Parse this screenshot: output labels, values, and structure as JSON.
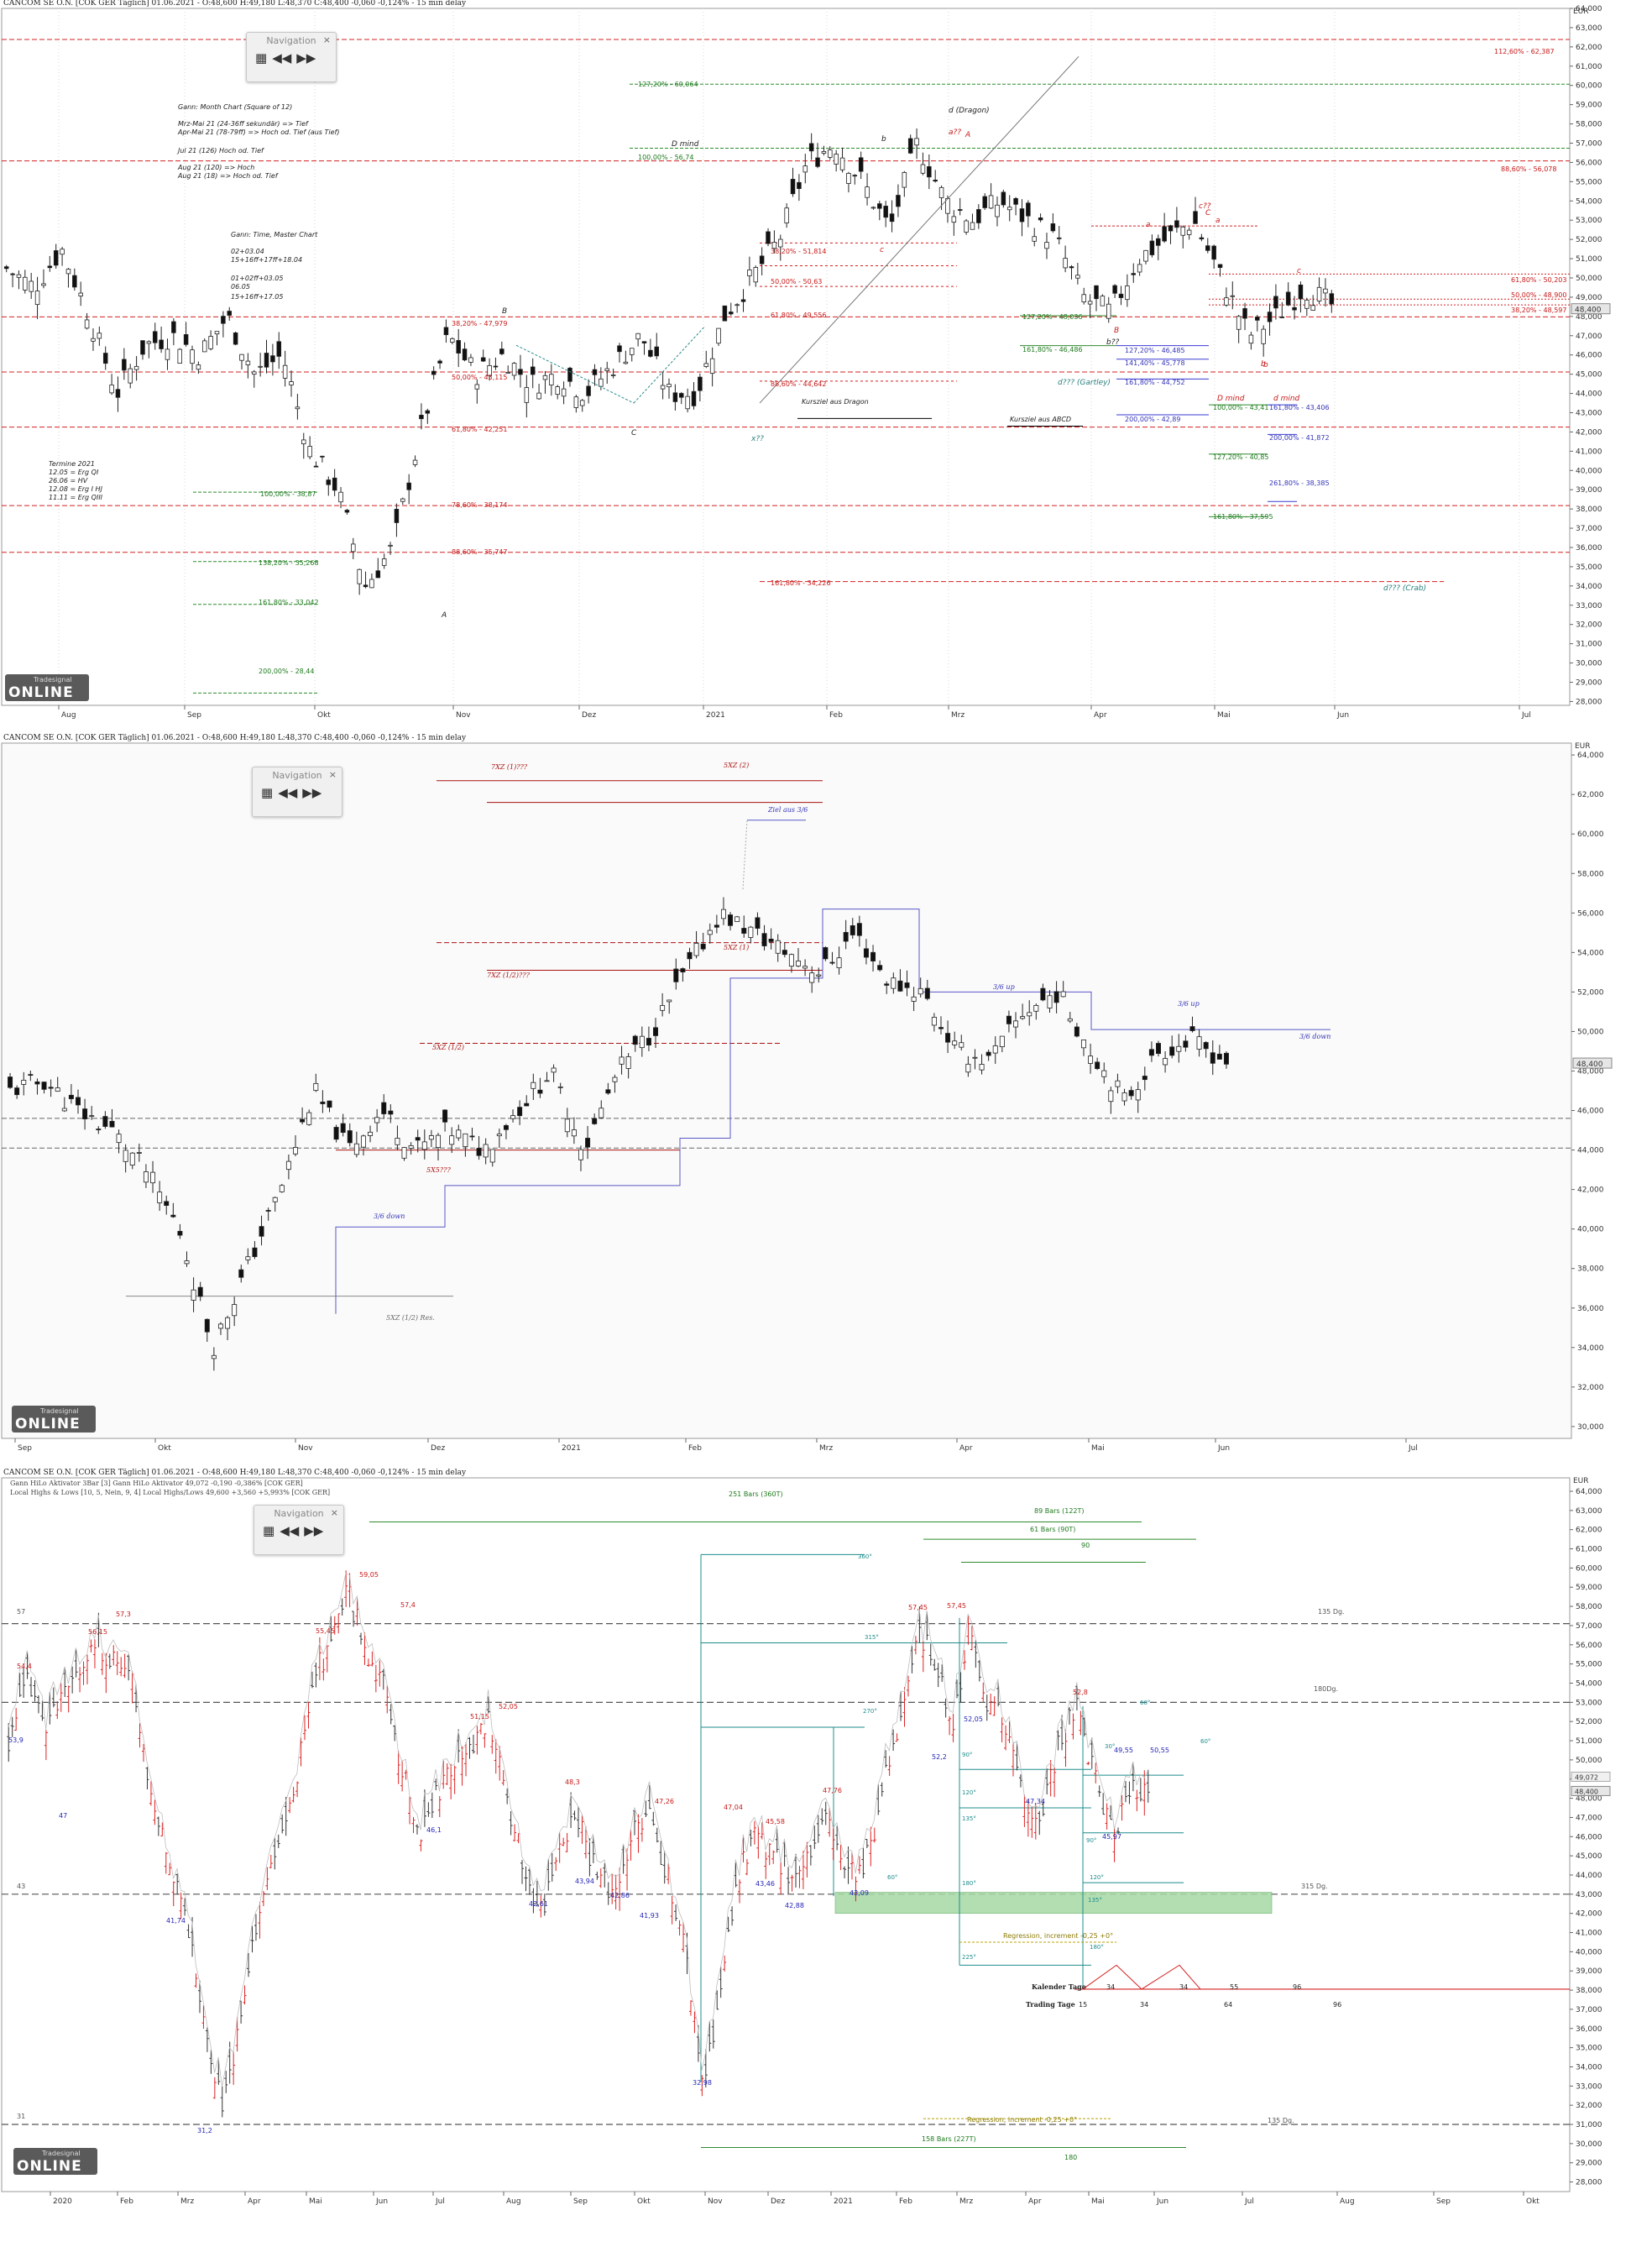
{
  "panels": [
    {
      "id": "p1",
      "header": "CANCOM SE O.N. [COK GER Täglich] 01.06.2021 - O:48,600 H:49,180 L:48,370 C:48,400 -0,060 -0,124% - 15 min delay",
      "axis_unit": "EUR",
      "navigation": {
        "title": "Navigation"
      },
      "months": [
        "Aug",
        "Sep",
        "Okt",
        "Nov",
        "Dez",
        "2021",
        "Feb",
        "Mrz",
        "Apr",
        "Mai",
        "Jun",
        "Jul"
      ],
      "y_ticks": [
        "64,000",
        "63,000",
        "62,000",
        "61,000",
        "60,000",
        "59,000",
        "58,000",
        "57,000",
        "56,000",
        "55,000",
        "54,000",
        "53,000",
        "52,000",
        "51,000",
        "50,000",
        "49,000",
        "48,000",
        "47,000",
        "46,000",
        "45,000",
        "44,000",
        "43,000",
        "42,000",
        "41,000",
        "40,000",
        "39,000",
        "38,000",
        "37,000",
        "36,000",
        "35,000",
        "34,000",
        "33,000",
        "32,000",
        "31,000",
        "30,000",
        "29,000",
        "28,000"
      ],
      "last_price": "48,400",
      "notes": [
        "Gann: Month Chart (Square of 12)",
        "Mrz-Mai 21 (24-36ff sekundär) => Tief",
        "Apr-Mai 21 (78-79ff) => Hoch od. Tief (aus Tief)",
        "Jul 21 (126) Hoch od. Tief",
        "Aug 21 (120) => Hoch",
        "Aug 21 (18) => Hoch od. Tief",
        "Gann: Time, Master Chart",
        "02+03.04",
        "15+16ff+17ff+18.04",
        "01+02ff+03.05",
        "06.05",
        "15+16ff+17.05"
      ],
      "termine": [
        "Termine 2021",
        "12.05 = Erg QI",
        "26.06 = HV",
        "12.08 = Erg I HJ",
        "11.11 = Erg QIII"
      ],
      "fib_labels": [
        "38,20% - 47,979",
        "50,00% - 45,115",
        "61,80% - 42,251",
        "78,60% - 38,174",
        "88,60% - 35,747",
        "161,80% - 34,226",
        "112,60% - 62,387",
        "88,60% - 56,078",
        "127,20% - 60,064",
        "100,00% - 56,74",
        "100,00% - 38,87",
        "138,20% - 35,268",
        "161,80% - 33,042",
        "200,00% - 28,44",
        "38,20% - 51,814",
        "50,00% - 50,63",
        "61,80% - 49,556",
        "88,60% - 44,642",
        "61,80% - 50,203",
        "50,00% - 48,900",
        "38,20% - 48,597",
        "127,20% - 48,036",
        "161,80% - 46,486",
        "127,20% - 46,485",
        "141,40% - 45,778",
        "161,80% - 44,752",
        "200,00% - 42,89",
        "100,00% - 43,41",
        "161,80% - 43,406",
        "200,00% - 41,872",
        "127,20% - 40,85",
        "261,80% - 38,385",
        "161,80% - 37,595"
      ],
      "wave_labels": [
        "A",
        "B",
        "C",
        "b",
        "a??",
        "A",
        "d (Dragon)",
        "D mind",
        "c",
        "B",
        "b??",
        "c??",
        "C",
        "a",
        "b",
        "c",
        "D mind",
        "d mind",
        "d??? (Gartley)",
        "d??? (Crab)",
        "x??",
        "a",
        "b"
      ],
      "pattern_labels": [
        "Kursziel aus Dragon",
        "Kursziel aus ABCD"
      ]
    },
    {
      "id": "p2",
      "header": "CANCOM SE O.N. [COK GER Täglich] 01.06.2021 - O:48,600 H:49,180 L:48,370 C:48,400 -0,060 -0,124% - 15 min delay",
      "axis_unit": "EUR",
      "navigation": {
        "title": "Navigation"
      },
      "months": [
        "Sep",
        "Okt",
        "Nov",
        "Dez",
        "2021",
        "Feb",
        "Mrz",
        "Apr",
        "Mai",
        "Jun",
        "Jul"
      ],
      "y_ticks": [
        "64,000",
        "62,000",
        "60,000",
        "58,000",
        "56,000",
        "54,000",
        "52,000",
        "50,000",
        "48,000",
        "46,000",
        "44,000",
        "42,000",
        "40,000",
        "38,000",
        "36,000",
        "34,000",
        "32,000",
        "30,000"
      ],
      "last_price": "48,400",
      "labels": [
        "5XZ (2)",
        "7XZ (1)???",
        "Ziel aus 3/6",
        "5XZ (1)",
        "7XZ (1/2)???",
        "5XZ (1/2)",
        "5X5???",
        "3/6 down",
        "5XZ (1/2) Res.",
        "3/6 up",
        "3/6 up",
        "3/6 down"
      ]
    },
    {
      "id": "p3",
      "header": "CANCOM SE O.N. [COK GER Täglich] 01.06.2021 - O:48,600 H:49,180 L:48,370 C:48,400 -0,060 -0,124% - 15 min delay",
      "sub1": "Gann HiLo Aktivator 3Bar [3] Gann HiLo Aktivator 49,072 -0,190 -0,386% [COK GER]",
      "sub2": "Local Highs & Lows [10, 5, Nein, 9, 4] Local Highs/Lows 49,600 +3,560 +5,993% [COK GER]",
      "axis_unit": "EUR",
      "navigation": {
        "title": "Navigation"
      },
      "months": [
        "2020",
        "Feb",
        "Mrz",
        "Apr",
        "Mai",
        "Jun",
        "Jul",
        "Aug",
        "Sep",
        "Okt",
        "Nov",
        "Dez",
        "2021",
        "Feb",
        "Mrz",
        "Apr",
        "Mai",
        "Jun",
        "Jul",
        "Aug",
        "Sep",
        "Okt"
      ],
      "y_ticks": [
        "64,000",
        "63,000",
        "62,000",
        "61,000",
        "60,000",
        "59,000",
        "58,000",
        "57,000",
        "56,000",
        "55,000",
        "54,000",
        "53,000",
        "52,000",
        "51,000",
        "50,000",
        "49,000",
        "48,000",
        "47,000",
        "46,000",
        "45,000",
        "44,000",
        "43,000",
        "42,000",
        "41,000",
        "40,000",
        "39,000",
        "38,000",
        "37,000",
        "36,000",
        "35,000",
        "34,000",
        "33,000",
        "32,000",
        "31,000",
        "30,000",
        "29,000",
        "28,000"
      ],
      "last_price": "48,400",
      "hilo_value": "49,072",
      "highs": [
        "54,4",
        "56,15",
        "57,3",
        "55,45",
        "59,05",
        "57,4",
        "51,15",
        "52,05",
        "48,3",
        "47,26",
        "47,04",
        "45,58",
        "47,76",
        "57,45",
        "57,45",
        "52,8"
      ],
      "lows": [
        "53,9",
        "47",
        "41,74",
        "31,2",
        "46,1",
        "42,61",
        "43,94",
        "42,86",
        "41,93",
        "32,98",
        "43,46",
        "42,88",
        "43,09",
        "52,2",
        "52,05",
        "47,34",
        "45,97",
        "49,55",
        "50,55"
      ],
      "bars_labels": [
        "251 Bars (360T)",
        "89 Bars (122T)",
        "61 Bars (90T)",
        "90",
        "158 Bars (227T)",
        "180"
      ],
      "angle_labels": [
        "360°",
        "315°",
        "270°",
        "90°",
        "120°",
        "135°",
        "180°",
        "225°",
        "60°",
        "60°",
        "30°",
        "90°",
        "120°",
        "135°",
        "180°",
        "60°"
      ],
      "side_labels": [
        "57",
        "135 Dg.",
        "180Dg.",
        "43",
        "315 Dg.",
        "31",
        "135 Dg."
      ],
      "regression_labels": [
        "Regression, increment -0,25 +0°",
        "Regression, increment -0,25 +0°"
      ],
      "kalender": {
        "label": "Kalender Tage",
        "values": [
          "34",
          "34",
          "55",
          "96"
        ]
      },
      "trading": {
        "label": "Trading Tage",
        "values": [
          "15",
          "34",
          "64",
          "96"
        ]
      }
    }
  ],
  "colors": {
    "up": "#ffffff",
    "down": "#000000",
    "red_line": "#d42020",
    "green_line": "#2e8b2e",
    "blue_line": "#3b3bd4",
    "teal_line": "#1f8c8c",
    "green_zone": "#a5d9a5"
  },
  "brand": {
    "line1": "Tradesignal",
    "line2": "ONLINE"
  }
}
